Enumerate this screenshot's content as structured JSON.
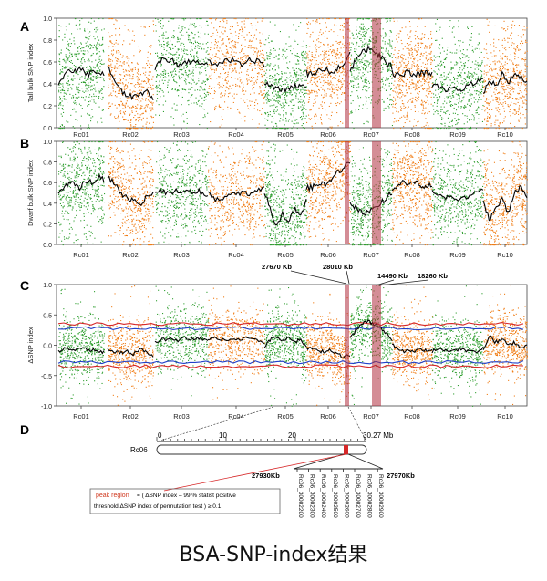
{
  "colors": {
    "green": "#2f9e2f",
    "orange": "#f07d16",
    "trend": "#000000",
    "threshold_red": "#d62728",
    "threshold_blue": "#2040c8",
    "highlight": "#b03040",
    "peak_text": "#d0381e"
  },
  "caption": "BSA-SNP-index结果",
  "chart_data": [
    {
      "panel": "A",
      "type": "scatter",
      "ylabel": "Tall bulk SNP index",
      "ylim": [
        0,
        1.0
      ],
      "yticks": [
        "0.0",
        "0.2",
        "0.4",
        "0.6",
        "0.8",
        "1.0"
      ],
      "chromosomes": [
        "Rc01",
        "Rc02",
        "Rc03",
        "Rc04",
        "Rc05",
        "Rc06",
        "Rc07",
        "Rc08",
        "Rc09",
        "Rc10"
      ],
      "chromosome_colors": [
        "green",
        "orange",
        "green",
        "orange",
        "green",
        "orange",
        "green",
        "orange",
        "green",
        "orange"
      ],
      "series": [
        {
          "chromosome": "Rc01",
          "trend": [
            0.38,
            0.46,
            0.52,
            0.5,
            0.55,
            0.53,
            0.48,
            0.52,
            0.5,
            0.49
          ]
        },
        {
          "chromosome": "Rc02",
          "trend": [
            0.55,
            0.45,
            0.35,
            0.3,
            0.27,
            0.3,
            0.32,
            0.28
          ]
        },
        {
          "chromosome": "Rc03",
          "trend": [
            0.52,
            0.62,
            0.6,
            0.61,
            0.58,
            0.6,
            0.6,
            0.61,
            0.6,
            0.58
          ]
        },
        {
          "chromosome": "Rc04",
          "trend": [
            0.6,
            0.58,
            0.6,
            0.6,
            0.62,
            0.58,
            0.6,
            0.62,
            0.6,
            0.58
          ]
        },
        {
          "chromosome": "Rc05",
          "trend": [
            0.42,
            0.38,
            0.35,
            0.35,
            0.36,
            0.38,
            0.4,
            0.35
          ]
        },
        {
          "chromosome": "Rc06",
          "trend": [
            0.5,
            0.48,
            0.52,
            0.55,
            0.5,
            0.55,
            0.6,
            0.7
          ]
        },
        {
          "chromosome": "Rc07",
          "trend": [
            0.5,
            0.62,
            0.68,
            0.72,
            0.7,
            0.65,
            0.6,
            0.55
          ]
        },
        {
          "chromosome": "Rc08",
          "trend": [
            0.5,
            0.48,
            0.5,
            0.5,
            0.48,
            0.5,
            0.5,
            0.48
          ]
        },
        {
          "chromosome": "Rc09",
          "trend": [
            0.4,
            0.38,
            0.35,
            0.36,
            0.36,
            0.4,
            0.42,
            0.45
          ]
        },
        {
          "chromosome": "Rc10",
          "trend": [
            0.3,
            0.45,
            0.38,
            0.5,
            0.42,
            0.48,
            0.45,
            0.42
          ]
        }
      ]
    },
    {
      "panel": "B",
      "type": "scatter",
      "ylabel": "Dwarf bulk SNP index",
      "ylim": [
        0,
        1.0
      ],
      "yticks": [
        "0.0",
        "0.2",
        "0.4",
        "0.6",
        "0.8",
        "1.0"
      ],
      "chromosomes": [
        "Rc01",
        "Rc02",
        "Rc03",
        "Rc04",
        "Rc05",
        "Rc06",
        "Rc07",
        "Rc08",
        "Rc09",
        "Rc10"
      ],
      "chromosome_colors": [
        "green",
        "orange",
        "green",
        "orange",
        "green",
        "orange",
        "green",
        "orange",
        "green",
        "orange"
      ],
      "series": [
        {
          "chromosome": "Rc01",
          "trend": [
            0.5,
            0.55,
            0.58,
            0.6,
            0.55,
            0.58,
            0.62,
            0.6,
            0.65,
            0.62
          ]
        },
        {
          "chromosome": "Rc02",
          "trend": [
            0.65,
            0.6,
            0.5,
            0.45,
            0.42,
            0.4,
            0.45,
            0.5
          ]
        },
        {
          "chromosome": "Rc03",
          "trend": [
            0.5,
            0.52,
            0.5,
            0.5,
            0.52,
            0.5,
            0.5,
            0.52,
            0.5,
            0.48
          ]
        },
        {
          "chromosome": "Rc04",
          "trend": [
            0.5,
            0.42,
            0.45,
            0.48,
            0.5,
            0.5,
            0.52,
            0.55
          ]
        },
        {
          "chromosome": "Rc05",
          "trend": [
            0.5,
            0.35,
            0.15,
            0.3,
            0.2,
            0.35,
            0.25,
            0.45
          ]
        },
        {
          "chromosome": "Rc06",
          "trend": [
            0.55,
            0.55,
            0.6,
            0.58,
            0.62,
            0.7,
            0.75,
            0.8
          ]
        },
        {
          "chromosome": "Rc07",
          "trend": [
            0.4,
            0.35,
            0.3,
            0.32,
            0.38,
            0.4,
            0.45,
            0.5
          ]
        },
        {
          "chromosome": "Rc08",
          "trend": [
            0.5,
            0.55,
            0.6,
            0.58,
            0.6,
            0.58,
            0.55,
            0.58
          ]
        },
        {
          "chromosome": "Rc09",
          "trend": [
            0.5,
            0.48,
            0.45,
            0.45,
            0.46,
            0.45,
            0.5,
            0.55
          ]
        },
        {
          "chromosome": "Rc10",
          "trend": [
            0.4,
            0.25,
            0.35,
            0.45,
            0.3,
            0.5,
            0.55,
            0.45
          ]
        }
      ]
    },
    {
      "panel": "C",
      "type": "scatter",
      "ylabel": "ΔSNP index",
      "ylim": [
        -1.0,
        1.0
      ],
      "yticks": [
        "-1.0",
        "-0.5",
        "0.0",
        "0.5",
        "1.0"
      ],
      "chromosomes": [
        "Rc01",
        "Rc02",
        "Rc03",
        "Rc04",
        "Rc05",
        "Rc06",
        "Rc07",
        "Rc08",
        "Rc09",
        "Rc10"
      ],
      "chromosome_colors": [
        "green",
        "orange",
        "green",
        "orange",
        "green",
        "orange",
        "green",
        "orange",
        "green",
        "orange"
      ],
      "threshold_99": 0.35,
      "threshold_95": 0.28,
      "series": [
        {
          "chromosome": "Rc01",
          "trend": [
            -0.1,
            -0.05,
            -0.05,
            -0.08,
            -0.02,
            -0.05,
            -0.1,
            -0.08,
            -0.12,
            -0.1
          ]
        },
        {
          "chromosome": "Rc02",
          "trend": [
            -0.05,
            -0.1,
            -0.12,
            -0.1,
            -0.15,
            -0.05,
            -0.1,
            -0.2
          ]
        },
        {
          "chromosome": "Rc03",
          "trend": [
            0.05,
            0.1,
            0.1,
            0.1,
            0.08,
            0.12,
            0.1,
            0.12,
            0.1,
            0.1
          ]
        },
        {
          "chromosome": "Rc04",
          "trend": [
            0.1,
            0.12,
            0.1,
            0.08,
            0.1,
            0.12,
            0.08,
            0.05
          ]
        },
        {
          "chromosome": "Rc05",
          "trend": [
            -0.05,
            0.1,
            0.15,
            0.05,
            0.15,
            0.05,
            0.1,
            -0.05
          ]
        },
        {
          "chromosome": "Rc06",
          "trend": [
            -0.05,
            -0.05,
            -0.1,
            -0.1,
            -0.08,
            -0.15,
            -0.2,
            -0.15
          ]
        },
        {
          "chromosome": "Rc07",
          "trend": [
            0.1,
            0.25,
            0.35,
            0.4,
            0.35,
            0.3,
            0.2,
            0.1
          ]
        },
        {
          "chromosome": "Rc08",
          "trend": [
            0.0,
            -0.05,
            -0.1,
            -0.08,
            -0.1,
            -0.05,
            -0.1,
            -0.08
          ]
        },
        {
          "chromosome": "Rc09",
          "trend": [
            -0.1,
            -0.05,
            -0.08,
            -0.1,
            -0.05,
            -0.1,
            -0.12,
            -0.05
          ]
        },
        {
          "chromosome": "Rc10",
          "trend": [
            -0.1,
            0.15,
            0.05,
            0.1,
            0.0,
            0.05,
            -0.05,
            0.0
          ]
        }
      ]
    }
  ],
  "panel_labels": [
    "A",
    "B",
    "C",
    "D"
  ],
  "region_labels": [
    "27670 Kb",
    "28010 Kb",
    "14490 Kb",
    "18260 Kb"
  ],
  "panel_d": {
    "chromosome": "Rc06",
    "scale_ticks": [
      "0",
      "10",
      "20"
    ],
    "scale_end": "30.27 Mb",
    "left_bound": "27930Kb",
    "right_bound": "27970Kb",
    "genes": [
      "Rc06_30002200",
      "Rc06_30002300",
      "Rc06_30002400",
      "Rc06_30002500",
      "Rc06_30002600",
      "Rc06_30002700",
      "Rc06_30002800",
      "Rc06_30002900"
    ],
    "peak_label": "peak  region",
    "peak_definition_line1": " = ( ΔSNP index – 99 % statist positive",
    "peak_definition_line2": "threshold ΔSNP index of permutation test ) ≥ 0.1"
  }
}
